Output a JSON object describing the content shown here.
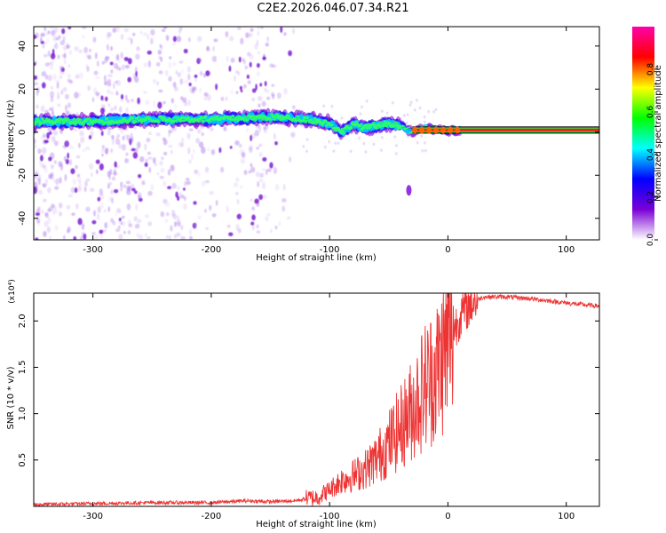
{
  "title": "C2E2.2026.046.07.34.R21",
  "chart_data": [
    {
      "type": "heatmap",
      "name": "spectrogram",
      "xlabel": "Height of straight line (km)",
      "ylabel": "Frequency (Hz)",
      "xlim": [
        -350,
        128
      ],
      "ylim": [
        -50,
        49
      ],
      "xticks": [
        -300,
        -200,
        -100,
        0,
        100
      ],
      "yticks": [
        -40,
        -20,
        0,
        20,
        40
      ],
      "colorbar": {
        "label": "Normalized spectral amplitude",
        "range": [
          0,
          1
        ],
        "ticks": [
          0.0,
          0.2,
          0.4,
          0.6,
          0.8
        ],
        "tick_labels": [
          "0.0",
          "0.2",
          "0.4",
          "0.6",
          "0.8"
        ],
        "colormap": [
          "#ffffff",
          "#7a00d6",
          "#0000ff",
          "#00ffff",
          "#00ff00",
          "#ffff00",
          "#ff0000",
          "#ff00aa"
        ]
      },
      "carrier_track": {
        "description": "peak frequency (Hz) versus height (km)",
        "x": [
          -350,
          -300,
          -250,
          -200,
          -150,
          -120,
          -100,
          -90,
          -80,
          -70,
          -60,
          -50,
          -40,
          -30,
          -20,
          -10,
          0,
          10,
          128
        ],
        "y": [
          5,
          5,
          6,
          6,
          7,
          6,
          4,
          0,
          4,
          2,
          3,
          4,
          3,
          0,
          2,
          1,
          1,
          1,
          1
        ]
      },
      "noise_band_x": [
        -350,
        -130
      ],
      "feature_annotation": "isolated blob near x=-33 km, y=-27 Hz"
    },
    {
      "type": "line",
      "name": "snr",
      "xlabel": "Height of straight line (km)",
      "ylabel": "SNR (10 * v/v)",
      "y_multiplier_label": "(x10⁴)",
      "xlim": [
        -350,
        128
      ],
      "ylim": [
        0,
        2.3
      ],
      "xticks": [
        -300,
        -200,
        -100,
        0,
        100
      ],
      "yticks": [
        0.5,
        1.0,
        1.5,
        2.0
      ],
      "ytick_labels": [
        "0.5",
        "1.0",
        "1.5",
        "2.0"
      ],
      "color": "#ee3333",
      "series": [
        {
          "name": "SNR",
          "x": [
            -350,
            -300,
            -250,
            -200,
            -170,
            -150,
            -130,
            -110,
            -100,
            -90,
            -80,
            -70,
            -60,
            -50,
            -40,
            -30,
            -20,
            -10,
            0,
            10,
            20,
            30,
            50,
            70,
            90,
            110,
            128
          ],
          "y": [
            0.02,
            0.03,
            0.04,
            0.04,
            0.06,
            0.05,
            0.06,
            0.1,
            0.18,
            0.28,
            0.33,
            0.4,
            0.52,
            0.68,
            0.85,
            1.05,
            1.3,
            1.45,
            1.75,
            2.05,
            2.2,
            2.26,
            2.26,
            2.24,
            2.21,
            2.18,
            2.16
          ]
        }
      ]
    }
  ]
}
